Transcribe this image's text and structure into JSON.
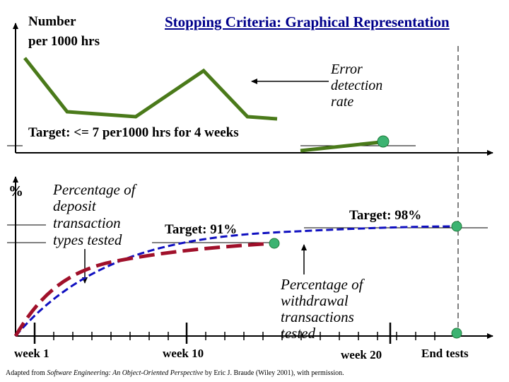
{
  "title": "Stopping Criteria: Graphical Representation",
  "top_chart": {
    "y_label_line1": "Number",
    "y_label_line2": "per 1000 hrs",
    "series_name": "Error detection rate",
    "annotation_line1": "Error",
    "annotation_line2": "detection",
    "annotation_line3": "rate",
    "target_label": "Target: <= 7 per1000 hrs for 4 weeks",
    "line_color": "#4a7a1a",
    "marker_color": "#3cb371"
  },
  "bottom_chart": {
    "y_label": "%",
    "deposit_label_line1": "Percentage of",
    "deposit_label_line2": "deposit",
    "deposit_label_line3": "transaction",
    "deposit_label_line4": "types tested",
    "withdrawal_label_line1": "Percentage of",
    "withdrawal_label_line2": "withdrawal",
    "withdrawal_label_line3": "transactions",
    "withdrawal_label_line4": "tested",
    "target_91": "Target: 91%",
    "target_98": "Target: 98%",
    "deposit_color": "#a0102a",
    "withdrawal_color": "#1010c0",
    "marker_color": "#3cb371"
  },
  "x_axis": {
    "week_1": "week 1",
    "week_10": "week 10",
    "week_20": "week 20",
    "end": "End tests"
  },
  "caption": {
    "prefix": "Adapted from ",
    "book": "Software Engineering: An Object-Oriented Perspective",
    "suffix": " by Eric J. Braude (Wiley 2001), with permission."
  },
  "chart_data": [
    {
      "type": "line",
      "title": "Stopping Criteria: Graphical Representation",
      "ylabel": "Number per 1000 hrs",
      "series": [
        {
          "name": "Error detection rate",
          "description": "zig-zag decreasing toward target",
          "points_relative": [
            0.94,
            0.3,
            0.06,
            0.8,
            0.06,
            0.0,
            0.03,
            0.09
          ]
        }
      ],
      "target": "<= 7 per1000 hrs for 4 weeks"
    },
    {
      "type": "line",
      "ylabel": "%",
      "x_ticks": [
        "week 1",
        "week 10",
        "week 20",
        "End tests"
      ],
      "series": [
        {
          "name": "Percentage of deposit transaction types tested",
          "style": "dashed",
          "target_percent": 91
        },
        {
          "name": "Percentage of withdrawal transactions tested",
          "style": "dashed",
          "target_percent": 98
        }
      ]
    }
  ]
}
